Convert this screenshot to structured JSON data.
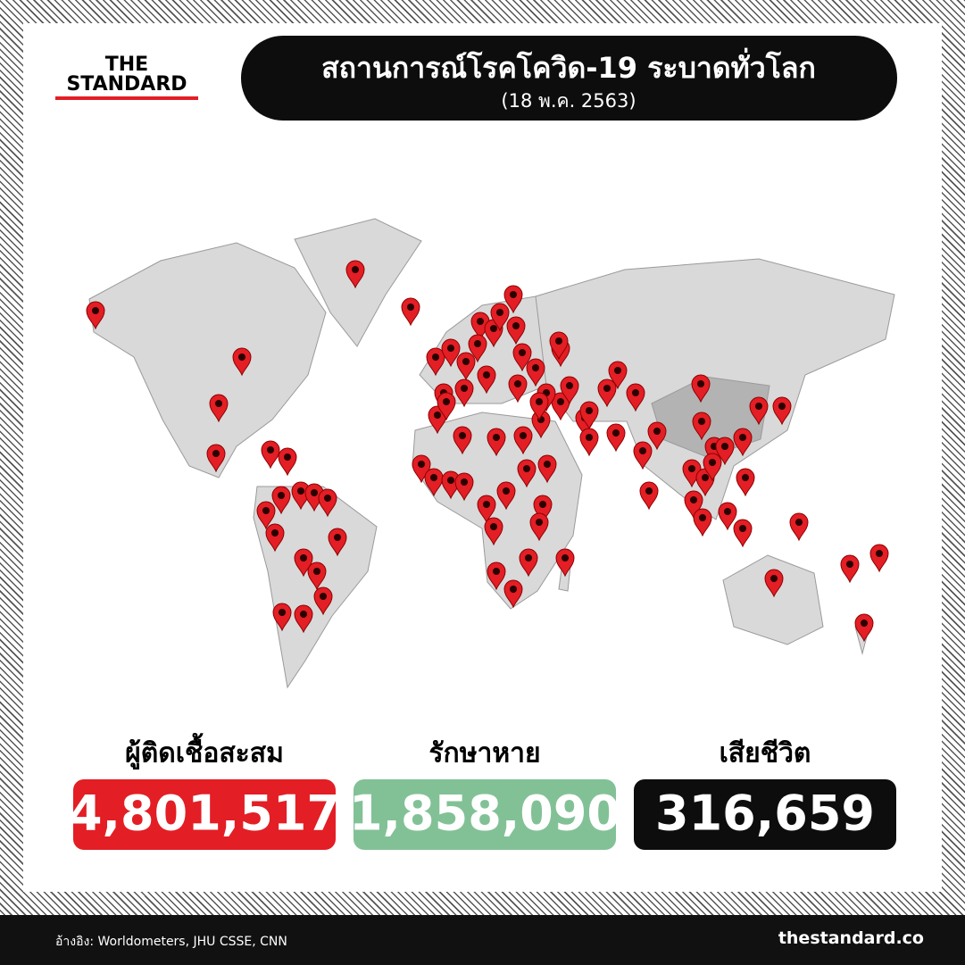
{
  "logo": {
    "line1": "THE",
    "line2": "STANDARD"
  },
  "header": {
    "title": "สถานการณ์โรคโควิด-19 ระบาดทั่วโลก",
    "subtitle": "(18 พ.ค. 2563)"
  },
  "stats": [
    {
      "label": "ผู้ติดเชื้อสะสม",
      "value": "4,801,517"
    },
    {
      "label": "รักษาหาย",
      "value": "1,858,090"
    },
    {
      "label": "เสียชีวิต",
      "value": "316,659"
    }
  ],
  "footer": {
    "source": "อ้างอิง: Worldometers, JHU CSSE, CNN",
    "site": "thestandard.co"
  }
}
